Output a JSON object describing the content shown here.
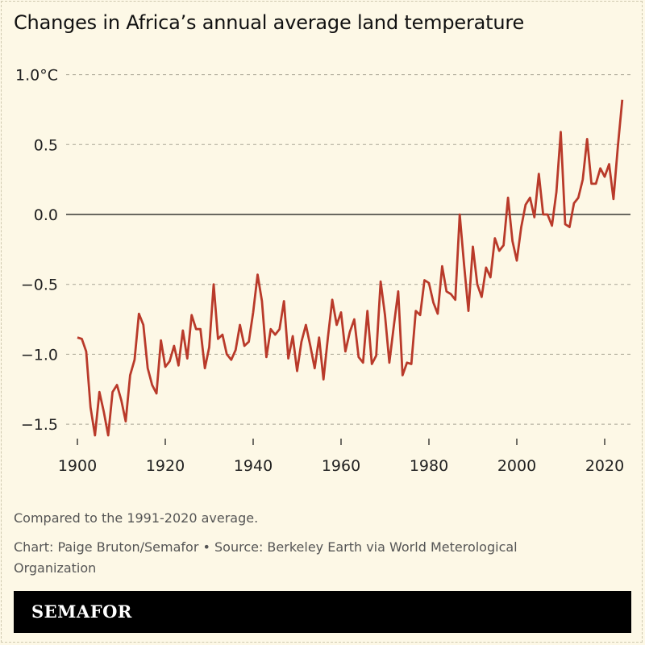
{
  "chart_data": {
    "type": "line",
    "title": "Changes in Africa’s annual average land temperature",
    "xlabel": "",
    "ylabel": "",
    "xlim": [
      1900,
      2024
    ],
    "ylim": [
      -1.6,
      1.0
    ],
    "grid": true,
    "x_ticks": [
      "1900",
      "1920",
      "1940",
      "1960",
      "1980",
      "2000",
      "2020"
    ],
    "y_ticks": [
      {
        "value": 1.0,
        "label": "1.0°C"
      },
      {
        "value": 0.5,
        "label": "0.5"
      },
      {
        "value": 0.0,
        "label": "0.0"
      },
      {
        "value": -0.5,
        "label": "−0.5"
      },
      {
        "value": -1.0,
        "label": "−1.0"
      },
      {
        "value": -1.5,
        "label": "−1.5"
      }
    ],
    "line_color": "#b93a2a",
    "series": [
      {
        "x_start": 1900,
        "values": [
          -0.88,
          -0.89,
          -0.98,
          -1.38,
          -1.58,
          -1.27,
          -1.41,
          -1.58,
          -1.27,
          -1.22,
          -1.33,
          -1.48,
          -1.15,
          -1.04,
          -0.71,
          -0.79,
          -1.1,
          -1.22,
          -1.28,
          -0.9,
          -1.09,
          -1.05,
          -0.94,
          -1.08,
          -0.83,
          -1.03,
          -0.72,
          -0.82,
          -0.82,
          -1.1,
          -0.95,
          -0.5,
          -0.89,
          -0.86,
          -1.0,
          -1.04,
          -0.97,
          -0.79,
          -0.94,
          -0.91,
          -0.7,
          -0.43,
          -0.62,
          -1.02,
          -0.82,
          -0.86,
          -0.82,
          -0.62,
          -1.03,
          -0.87,
          -1.12,
          -0.91,
          -0.79,
          -0.94,
          -1.1,
          -0.88,
          -1.18,
          -0.88,
          -0.61,
          -0.79,
          -0.7,
          -0.98,
          -0.84,
          -0.75,
          -1.02,
          -1.06,
          -0.69,
          -1.07,
          -1.01,
          -0.48,
          -0.72,
          -1.06,
          -0.8,
          -0.55,
          -1.15,
          -1.06,
          -1.07,
          -0.69,
          -0.72,
          -0.47,
          -0.49,
          -0.63,
          -0.71,
          -0.37,
          -0.55,
          -0.57,
          -0.61,
          0.0,
          -0.36,
          -0.69,
          -0.23,
          -0.5,
          -0.59,
          -0.38,
          -0.45,
          -0.17,
          -0.26,
          -0.22,
          0.12,
          -0.19,
          -0.33,
          -0.09,
          0.07,
          0.12,
          -0.02,
          0.29,
          0.0,
          0.0,
          -0.08,
          0.16,
          0.59,
          -0.07,
          -0.09,
          0.08,
          0.12,
          0.25,
          0.54,
          0.22,
          0.22,
          0.33,
          0.27,
          0.36,
          0.11,
          0.49,
          0.82
        ]
      }
    ]
  },
  "notes": {
    "comparison": "Compared to the 1991-2020 average.",
    "credit": "Chart: Paige Bruton/Semafor • Source: Berkeley Earth via World Meterological Organization"
  },
  "logo": "SEMAFOR"
}
